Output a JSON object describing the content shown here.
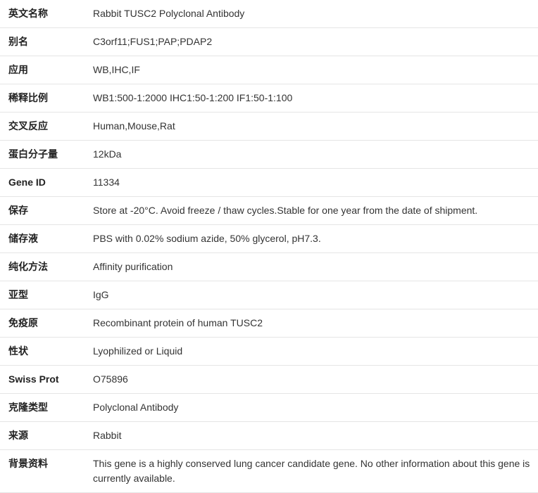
{
  "rows": [
    {
      "label": "英文名称",
      "value": "Rabbit TUSC2 Polyclonal Antibody"
    },
    {
      "label": "别名",
      "value": "C3orf11;FUS1;PAP;PDAP2"
    },
    {
      "label": "应用",
      "value": "WB,IHC,IF"
    },
    {
      "label": "稀释比例",
      "value": "WB1:500-1:2000 IHC1:50-1:200 IF1:50-1:100"
    },
    {
      "label": "交叉反应",
      "value": "Human,Mouse,Rat"
    },
    {
      "label": "蛋白分子量",
      "value": "12kDa"
    },
    {
      "label": "Gene ID",
      "value": "11334"
    },
    {
      "label": "保存",
      "value": "Store at -20°C. Avoid freeze / thaw cycles.Stable for one year from the date of shipment."
    },
    {
      "label": "储存液",
      "value": "PBS with 0.02% sodium azide, 50% glycerol, pH7.3."
    },
    {
      "label": "纯化方法",
      "value": "Affinity purification"
    },
    {
      "label": "亚型",
      "value": "IgG"
    },
    {
      "label": "免疫原",
      "value": "Recombinant protein of human TUSC2"
    },
    {
      "label": "性状",
      "value": "Lyophilized or Liquid"
    },
    {
      "label": "Swiss Prot",
      "value": "O75896"
    },
    {
      "label": "克隆类型",
      "value": "Polyclonal Antibody"
    },
    {
      "label": "来源",
      "value": "Rabbit"
    },
    {
      "label": "背景资料",
      "value": "This gene is a highly conserved lung cancer candidate gene. No other information about this gene is currently available."
    }
  ]
}
